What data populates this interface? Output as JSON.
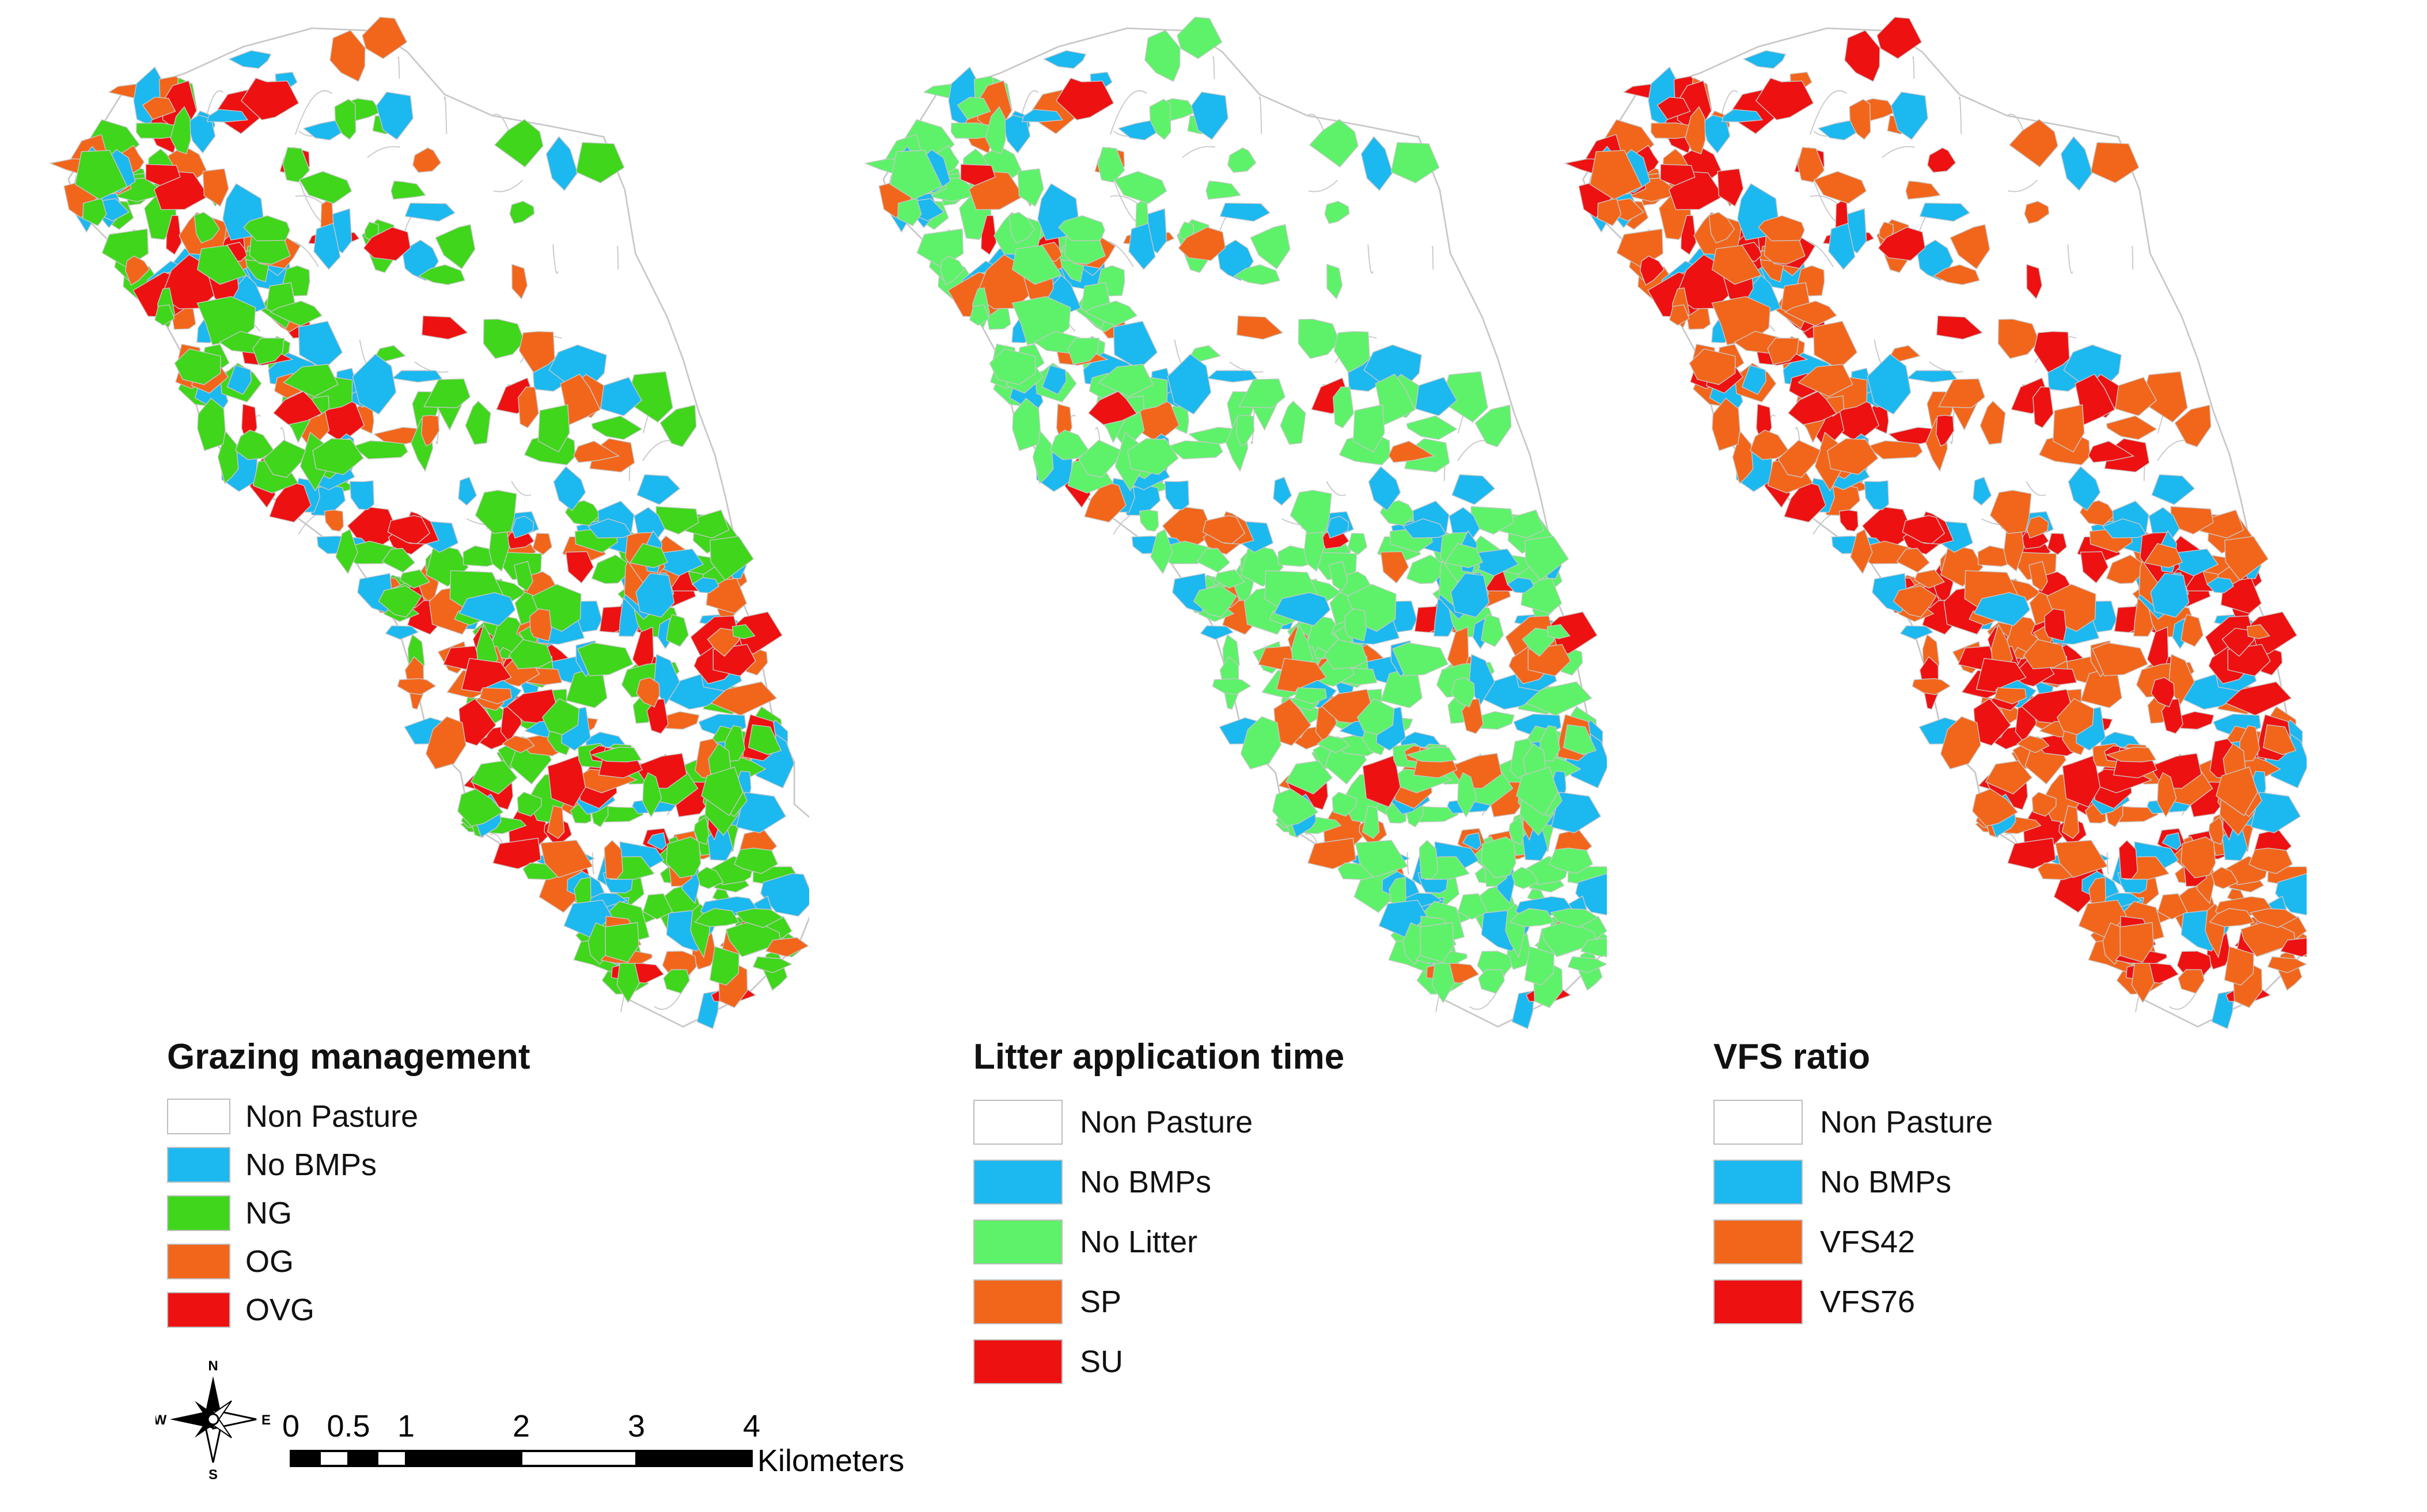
{
  "maps": [
    {
      "title": "Grazing management",
      "legend": [
        {
          "label": "Non Pasture",
          "color": "#ffffff"
        },
        {
          "label": "No BMPs",
          "color": "#1cb8f0"
        },
        {
          "label": "NG",
          "color": "#3fd61c"
        },
        {
          "label": "OG",
          "color": "#f2661b"
        },
        {
          "label": "OVG",
          "color": "#ee1111"
        }
      ],
      "class_weights": [
        0.0,
        0.22,
        0.4,
        0.22,
        0.16
      ]
    },
    {
      "title": "Litter application time",
      "legend": [
        {
          "label": "Non Pasture",
          "color": "#ffffff"
        },
        {
          "label": "No BMPs",
          "color": "#1cb8f0"
        },
        {
          "label": "No Litter",
          "color": "#5df26a"
        },
        {
          "label": "SP",
          "color": "#f2661b"
        },
        {
          "label": "SU",
          "color": "#ee1111"
        }
      ],
      "class_weights": [
        0.0,
        0.22,
        0.6,
        0.16,
        0.02
      ]
    },
    {
      "title": "VFS ratio",
      "legend": [
        {
          "label": "Non Pasture",
          "color": "#ffffff"
        },
        {
          "label": "No BMPs",
          "color": "#1cb8f0"
        },
        {
          "label": "VFS42",
          "color": "#f2661b"
        },
        {
          "label": "VFS76",
          "color": "#ee1111"
        }
      ],
      "class_weights": [
        0.0,
        0.2,
        0.45,
        0.35
      ]
    }
  ],
  "scalebar": {
    "ticks": [
      "0",
      "0.5",
      "1",
      "2",
      "3",
      "4"
    ],
    "tick_values": [
      0,
      0.5,
      1,
      2,
      3,
      4
    ],
    "unit": "Kilometers"
  },
  "compass": {
    "north": "N",
    "south": "S",
    "east": "E",
    "west": "W"
  },
  "colors": {
    "boundary": "#c8c8c8",
    "scalebar": "#000000"
  }
}
